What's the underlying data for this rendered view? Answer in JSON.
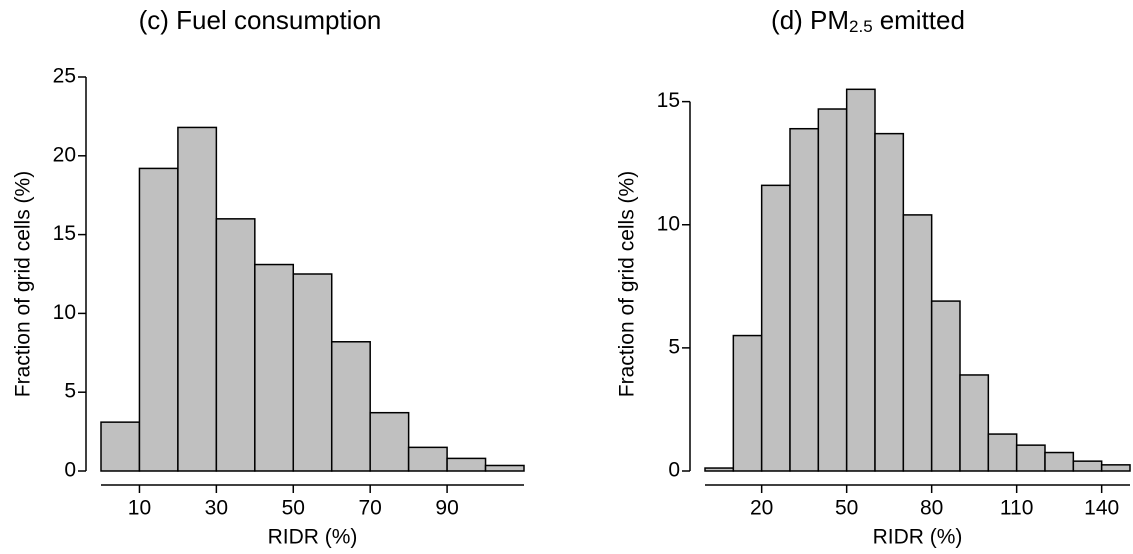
{
  "chart_data": [
    {
      "type": "histogram",
      "title": "(c) Fuel consumption",
      "xlabel": "RIDR (%)",
      "ylabel": "Fraction of grid cells (%)",
      "bins": [
        0,
        10,
        20,
        30,
        40,
        50,
        60,
        70,
        80,
        90,
        100,
        110
      ],
      "values": [
        3.1,
        19.2,
        21.8,
        16.0,
        13.1,
        12.5,
        8.2,
        3.7,
        1.5,
        0.8,
        0.35
      ],
      "color": "#c0c0c0",
      "xlim": [
        0,
        110
      ],
      "ylim": [
        0,
        25
      ],
      "xticks": [
        10,
        30,
        50,
        70,
        90
      ],
      "yticks": [
        0,
        5,
        10,
        15,
        20,
        25
      ]
    },
    {
      "type": "histogram",
      "title": "(d) PM",
      "title_subscript": "2.5",
      "title_suffix": "emitted",
      "xlabel": "RIDR (%)",
      "ylabel": "Fraction of grid cells (%)",
      "bins": [
        0,
        10,
        20,
        30,
        40,
        50,
        60,
        70,
        80,
        90,
        100,
        110,
        120,
        130,
        140,
        150
      ],
      "values": [
        0.12,
        5.5,
        11.6,
        13.9,
        14.7,
        15.5,
        13.7,
        10.4,
        6.9,
        3.9,
        1.5,
        1.05,
        0.75,
        0.4,
        0.25
      ],
      "color": "#c0c0c0",
      "xlim": [
        0,
        150
      ],
      "ylim": [
        0,
        16
      ],
      "xticks": [
        20,
        50,
        80,
        110,
        140
      ],
      "yticks": [
        0,
        5,
        10,
        15
      ]
    }
  ]
}
